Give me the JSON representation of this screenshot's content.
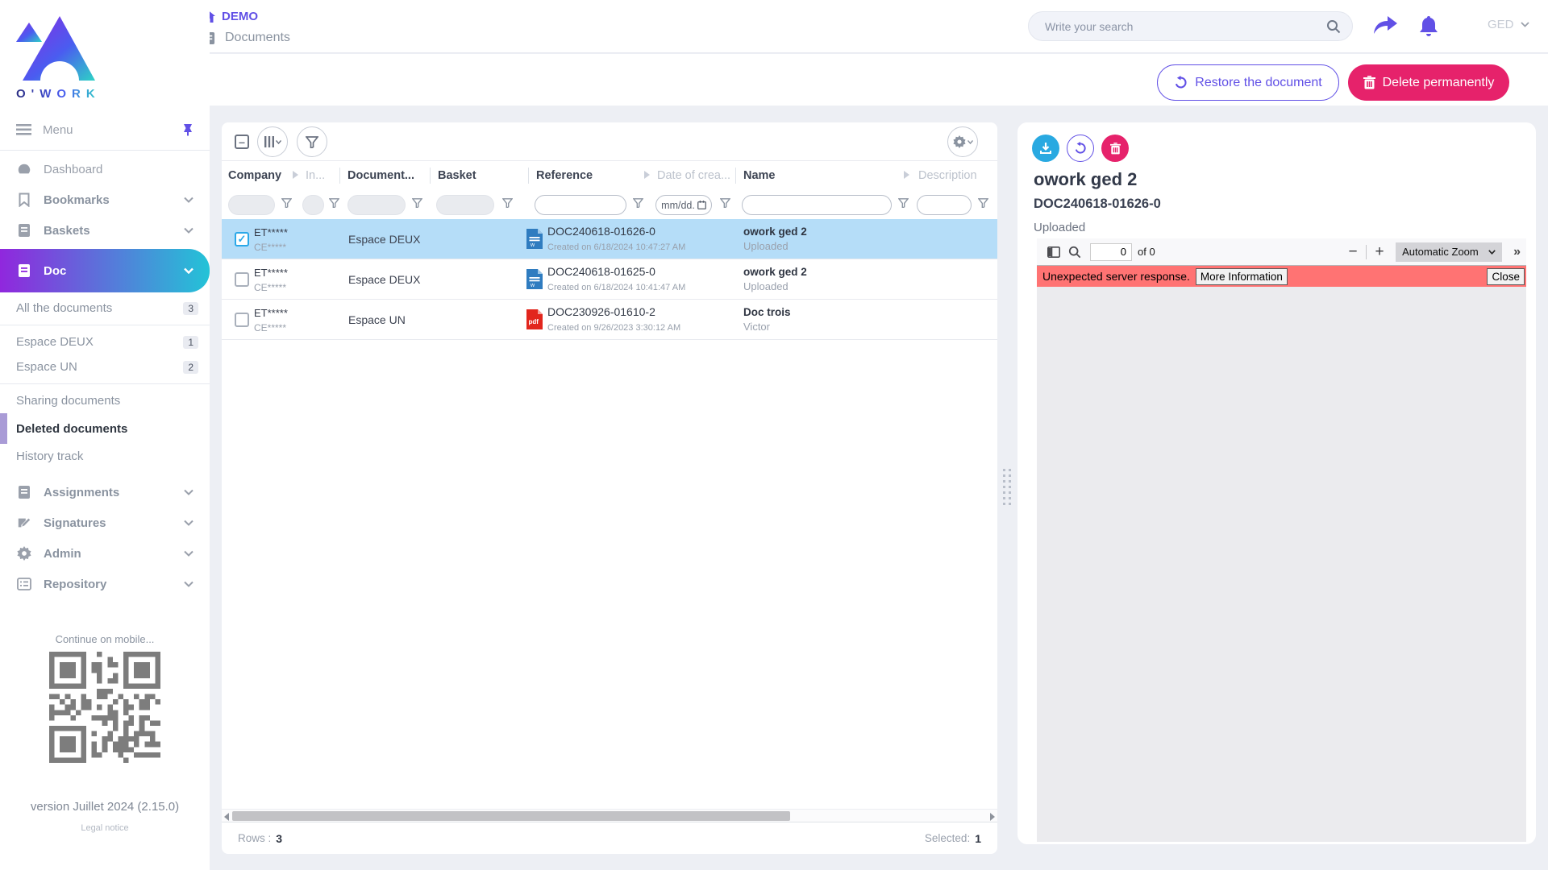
{
  "brand": {
    "name": "O'WORK"
  },
  "topbar": {
    "breadcrumb_app": "DEMO",
    "breadcrumb_page": "Documents",
    "search_placeholder": "Write your search",
    "user_label": "GED"
  },
  "actionbar": {
    "restore_label": "Restore the document",
    "delete_label": "Delete permanently"
  },
  "sidebar": {
    "menu_label": "Menu",
    "items": [
      {
        "label": "Dashboard"
      },
      {
        "label": "Bookmarks"
      },
      {
        "label": "Baskets"
      },
      {
        "label": "Doc"
      }
    ],
    "doc_submenu": [
      {
        "label": "All the documents",
        "count": "3"
      },
      {
        "label": "Espace DEUX",
        "count": "1"
      },
      {
        "label": "Espace UN",
        "count": "2"
      },
      {
        "label": "Sharing documents"
      },
      {
        "label": "Deleted documents",
        "selected": true
      },
      {
        "label": "History track"
      }
    ],
    "lower_items": [
      {
        "label": "Assignments"
      },
      {
        "label": "Signatures"
      },
      {
        "label": "Admin"
      },
      {
        "label": "Repository"
      }
    ],
    "mobile_hint": "Continue on mobile...",
    "version": "version Juillet 2024 (2.15.0)",
    "legal_notice": "Legal notice"
  },
  "table": {
    "columns": {
      "company": "Company",
      "indexing": "In...",
      "document": "Document...",
      "basket": "Basket",
      "reference": "Reference",
      "date": "Date of crea...",
      "name": "Name",
      "description": "Description"
    },
    "date_filter_placeholder": "mm/dd.",
    "rows": [
      {
        "selected": true,
        "company_line1": "ET*****",
        "company_line2": "CE*****",
        "document_space": "Espace DEUX",
        "file_type": "word",
        "reference": "DOC240618-01626-0",
        "created": "Created on 6/18/2024 10:47:27 AM",
        "name": "owork ged 2",
        "status": "Uploaded"
      },
      {
        "selected": false,
        "company_line1": "ET*****",
        "company_line2": "CE*****",
        "document_space": "Espace DEUX",
        "file_type": "word",
        "reference": "DOC240618-01625-0",
        "created": "Created on 6/18/2024 10:41:47 AM",
        "name": "owork ged 2",
        "status": "Uploaded"
      },
      {
        "selected": false,
        "company_line1": "ET*****",
        "company_line2": "CE*****",
        "document_space": "Espace UN",
        "file_type": "pdf",
        "reference": "DOC230926-01610-2",
        "created": "Created on 9/26/2023 3:30:12 AM",
        "name": "Doc trois",
        "status": "Victor"
      }
    ],
    "footer": {
      "rows_label": "Rows :",
      "rows_value": "3",
      "selected_label": "Selected:",
      "selected_value": "1"
    }
  },
  "preview": {
    "title": "owork ged 2",
    "reference": "DOC240618-01626-0",
    "status": "Uploaded",
    "viewer": {
      "page_value": "0",
      "page_count_label": "of 0",
      "zoom_select": "Automatic Zoom",
      "error_message": "Unexpected server response.",
      "more_info_label": "More Information",
      "close_label": "Close"
    }
  },
  "colors": {
    "accent_purple": "#6150e6",
    "accent_pink": "#e6226b",
    "accent_blue": "#29a9e1",
    "selected_row": "#b5ddf8",
    "error_bar": "#ff7373",
    "doc_gradient_start": "#9027dd",
    "doc_gradient_end": "#23c3d7"
  }
}
